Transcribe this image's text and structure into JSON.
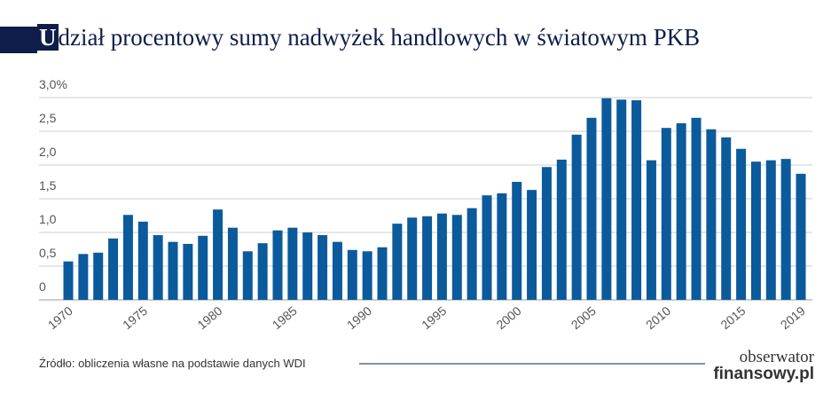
{
  "chart_data": {
    "type": "bar",
    "title": "Udział procentowy sumy nadwyżek handlowych w światowym PKB",
    "categories": [
      "1970",
      null,
      null,
      null,
      null,
      "1975",
      null,
      null,
      null,
      null,
      "1980",
      null,
      null,
      null,
      null,
      "1985",
      null,
      null,
      null,
      null,
      "1990",
      null,
      null,
      null,
      null,
      "1995",
      null,
      null,
      null,
      null,
      "2000",
      null,
      null,
      null,
      null,
      "2005",
      null,
      null,
      null,
      null,
      "2010",
      null,
      null,
      null,
      null,
      "2015",
      null,
      null,
      null,
      "2019"
    ],
    "values": [
      0.57,
      0.68,
      0.7,
      0.91,
      1.26,
      1.16,
      0.96,
      0.86,
      0.83,
      0.95,
      1.34,
      1.07,
      0.72,
      0.84,
      1.03,
      1.07,
      1.0,
      0.96,
      0.86,
      0.74,
      0.72,
      0.78,
      1.13,
      1.22,
      1.24,
      1.28,
      1.26,
      1.36,
      1.55,
      1.58,
      1.75,
      1.63,
      1.97,
      2.08,
      2.45,
      2.7,
      2.99,
      2.97,
      2.96,
      2.07,
      2.55,
      2.62,
      2.7,
      2.53,
      2.41,
      2.24,
      2.05,
      2.07,
      2.09,
      1.87
    ],
    "color": "#0b5a9c",
    "ylim": [
      0,
      3.0
    ],
    "yticks": [
      0,
      {
        "value": 0.5,
        "label": "0,5"
      },
      {
        "value": 1.0,
        "label": "1,0"
      },
      {
        "value": 1.5,
        "label": "1,5"
      },
      {
        "value": 2.0,
        "label": "2,0"
      },
      {
        "value": 2.5,
        "label": "2,5"
      },
      {
        "value": 3.0,
        "label": "3,0%"
      }
    ],
    "grid": true,
    "source": "Źródło: obliczenia własne na podstawie danych WDI",
    "logo": [
      "obserwator",
      "finansowy.pl"
    ]
  }
}
